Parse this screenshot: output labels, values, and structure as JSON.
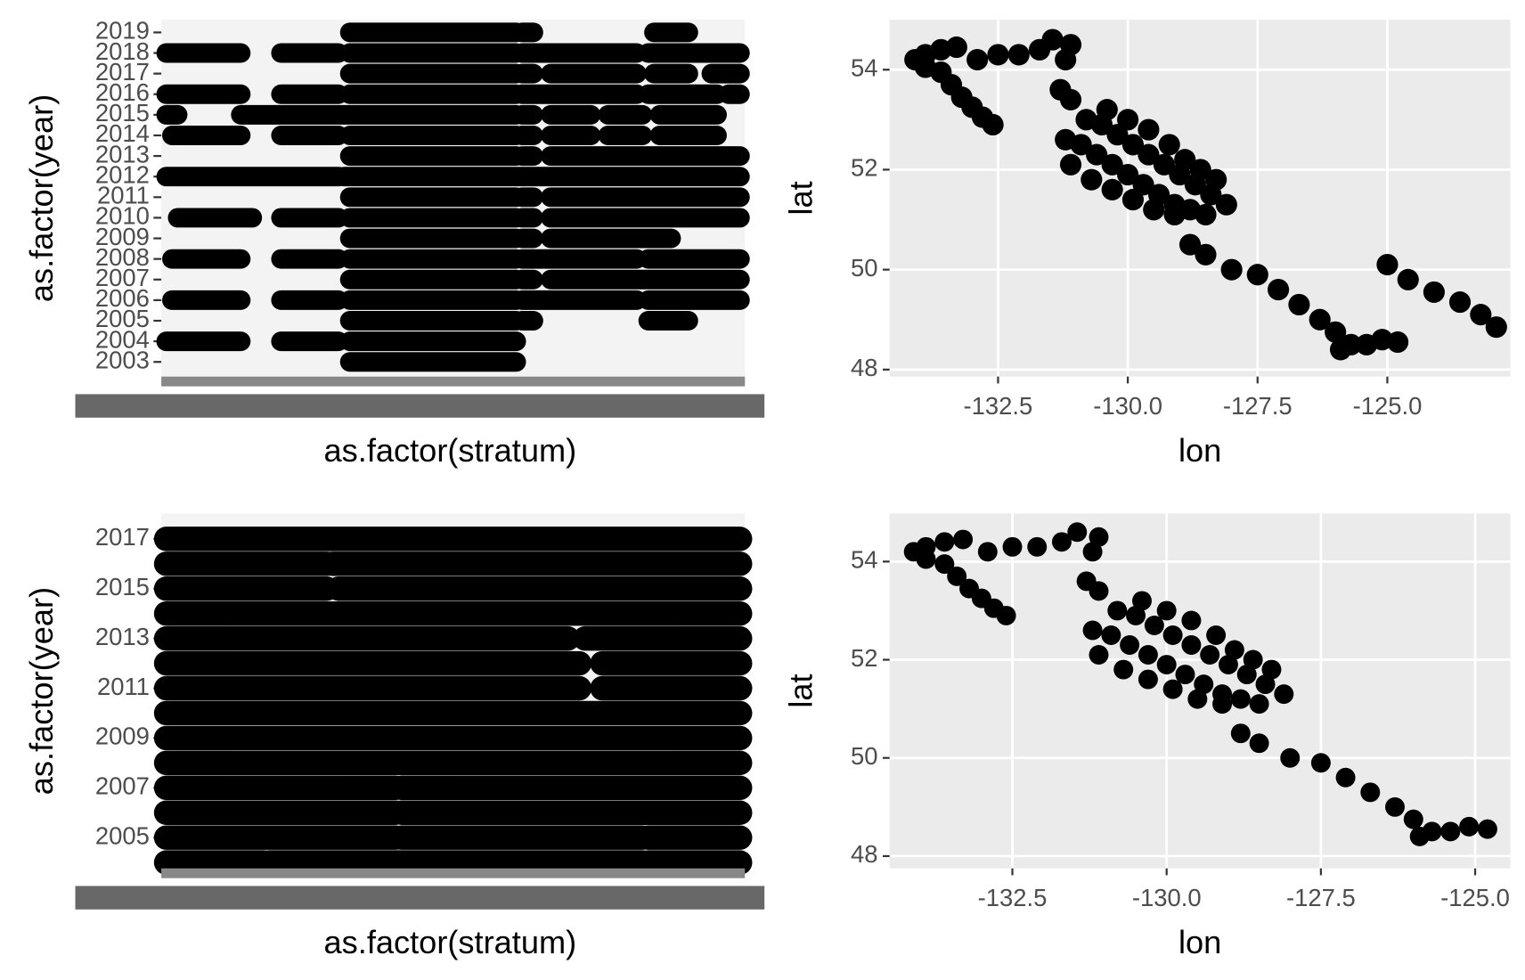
{
  "chart_data": [
    {
      "type": "strip",
      "x_label": "as.factor(stratum)",
      "y_label": "as.factor(year)",
      "xlim": [
        0,
        100
      ],
      "categories": [
        2003,
        2004,
        2005,
        2006,
        2007,
        2008,
        2009,
        2010,
        2011,
        2012,
        2013,
        2014,
        2015,
        2016,
        2017,
        2018,
        2019
      ],
      "segments": [
        [
          [
            32,
            61
          ]
        ],
        [
          [
            0,
            13
          ],
          [
            20,
            30
          ],
          [
            32,
            61
          ]
        ],
        [
          [
            32,
            61
          ],
          [
            62,
            64
          ],
          [
            84,
            91
          ]
        ],
        [
          [
            1,
            13
          ],
          [
            20,
            30
          ],
          [
            32,
            61
          ],
          [
            62,
            82
          ],
          [
            84,
            100
          ]
        ],
        [
          [
            32,
            61
          ],
          [
            62,
            64
          ],
          [
            67,
            100
          ]
        ],
        [
          [
            1,
            13
          ],
          [
            20,
            30
          ],
          [
            32,
            61
          ],
          [
            62,
            82
          ],
          [
            84,
            100
          ]
        ],
        [
          [
            32,
            61
          ],
          [
            62,
            64
          ],
          [
            67,
            88
          ]
        ],
        [
          [
            2,
            15
          ],
          [
            20,
            30
          ],
          [
            32,
            61
          ],
          [
            62,
            64
          ],
          [
            67,
            100
          ]
        ],
        [
          [
            32,
            61
          ],
          [
            62,
            64
          ],
          [
            67,
            100
          ]
        ],
        [
          [
            0,
            30
          ],
          [
            31,
            100
          ]
        ],
        [
          [
            32,
            61
          ],
          [
            62,
            64
          ],
          [
            67,
            100
          ]
        ],
        [
          [
            1,
            13
          ],
          [
            20,
            30
          ],
          [
            32,
            61
          ],
          [
            62,
            64
          ],
          [
            67,
            74
          ],
          [
            77,
            83
          ],
          [
            86,
            96
          ]
        ],
        [
          [
            0,
            2
          ],
          [
            13,
            61
          ],
          [
            62,
            64
          ],
          [
            67,
            74
          ],
          [
            77,
            83
          ],
          [
            86,
            96
          ]
        ],
        [
          [
            0,
            13
          ],
          [
            20,
            30
          ],
          [
            32,
            61
          ],
          [
            62,
            82
          ],
          [
            84,
            96
          ],
          [
            98,
            100
          ]
        ],
        [
          [
            32,
            61
          ],
          [
            62,
            64
          ],
          [
            67,
            82
          ],
          [
            85,
            91
          ],
          [
            95,
            100
          ]
        ],
        [
          [
            0,
            13
          ],
          [
            20,
            30
          ],
          [
            32,
            61
          ],
          [
            62,
            82
          ],
          [
            84,
            100
          ]
        ],
        [
          [
            32,
            61
          ],
          [
            62,
            64
          ],
          [
            85,
            91
          ]
        ]
      ]
    },
    {
      "type": "scatter",
      "x_label": "lon",
      "y_label": "lat",
      "color": "#000000",
      "xlim": [
        -134.59,
        -122.63
      ],
      "ylim": [
        47.86,
        55.0
      ],
      "xticks": [
        -132.5,
        {
          "value": -130,
          "label": "-130.0"
        },
        -127.5,
        {
          "value": -125,
          "label": "-125.0"
        }
      ],
      "yticks": [
        48,
        50,
        52,
        54
      ],
      "x": [
        -134.1,
        -133.9,
        -133.6,
        -133.3,
        -133.9,
        -133.6,
        -133.4,
        -133.2,
        -133.0,
        -132.8,
        -132.6,
        -132.9,
        -132.5,
        -132.1,
        -131.7,
        -131.45,
        -131.1,
        -131.2,
        -131.3,
        -131.1,
        -130.8,
        -130.5,
        -130.2,
        -129.9,
        -129.6,
        -129.3,
        -129.0,
        -128.7,
        -128.4,
        -128.1,
        -130.9,
        -130.6,
        -130.3,
        -130.0,
        -129.7,
        -129.4,
        -129.1,
        -128.8,
        -128.5,
        -130.4,
        -130.0,
        -129.6,
        -129.2,
        -128.9,
        -128.6,
        -128.3,
        -131.1,
        -130.7,
        -130.3,
        -129.9,
        -129.5,
        -129.1,
        -131.2,
        -128.8,
        -128.5,
        -128.0,
        -127.5,
        -127.1,
        -126.7,
        -126.3,
        -126.0,
        -125.7,
        -125.4,
        -125.1,
        -124.8,
        -125.9,
        -125.0,
        -124.6,
        -124.1,
        -123.6,
        -123.2,
        -122.9
      ],
      "y": [
        54.2,
        54.3,
        54.4,
        54.45,
        54.05,
        53.95,
        53.7,
        53.45,
        53.25,
        53.05,
        52.9,
        54.2,
        54.3,
        54.3,
        54.4,
        54.6,
        54.5,
        54.2,
        53.6,
        53.4,
        53.0,
        52.9,
        52.7,
        52.5,
        52.3,
        52.1,
        51.9,
        51.7,
        51.5,
        51.3,
        52.5,
        52.3,
        52.1,
        51.9,
        51.7,
        51.5,
        51.3,
        51.2,
        51.1,
        53.2,
        53.0,
        52.8,
        52.5,
        52.2,
        52.0,
        51.8,
        52.1,
        51.8,
        51.6,
        51.4,
        51.2,
        51.1,
        52.6,
        50.5,
        50.3,
        50.0,
        49.9,
        49.6,
        49.3,
        49.0,
        48.75,
        48.5,
        48.5,
        48.6,
        48.55,
        48.4,
        50.1,
        49.8,
        49.55,
        49.35,
        49.1,
        48.85
      ]
    },
    {
      "type": "strip",
      "x_label": "as.factor(stratum)",
      "y_label": "as.factor(year)",
      "xlim": [
        0,
        100
      ],
      "categories": [
        null,
        2005,
        null,
        2007,
        null,
        2009,
        null,
        2011,
        null,
        2013,
        null,
        2015,
        null,
        2017
      ],
      "segments": [
        [
          [
            0,
            17
          ],
          [
            18,
            83
          ],
          [
            84,
            100
          ]
        ],
        [
          [
            0,
            40
          ],
          [
            41,
            83
          ],
          [
            84,
            100
          ]
        ],
        [
          [
            0,
            40
          ],
          [
            41,
            100
          ]
        ],
        [
          [
            0,
            40
          ],
          [
            41,
            100
          ]
        ],
        [
          [
            0,
            100
          ]
        ],
        [
          [
            0,
            100
          ]
        ],
        [
          [
            0,
            100
          ]
        ],
        [
          [
            0,
            72
          ],
          [
            76,
            100
          ]
        ],
        [
          [
            0,
            72
          ],
          [
            76,
            100
          ]
        ],
        [
          [
            0,
            70
          ],
          [
            73,
            100
          ]
        ],
        [
          [
            0,
            100
          ]
        ],
        [
          [
            0,
            28
          ],
          [
            30,
            100
          ]
        ],
        [
          [
            0,
            28
          ],
          [
            29,
            100
          ]
        ],
        [
          [
            0,
            100
          ]
        ]
      ]
    },
    {
      "type": "scatter",
      "x_label": "lon",
      "y_label": "lat",
      "color": "#000000",
      "xlim": [
        -134.49,
        -124.43
      ],
      "ylim": [
        47.75,
        54.98
      ],
      "xticks": [
        -132.5,
        {
          "value": -130,
          "label": "-130.0"
        },
        -127.5,
        {
          "value": -125,
          "label": "-125.0"
        }
      ],
      "yticks": [
        48,
        50,
        52,
        54
      ],
      "x": [
        -134.1,
        -133.9,
        -133.6,
        -133.3,
        -133.9,
        -133.6,
        -133.4,
        -133.2,
        -133.0,
        -132.8,
        -132.6,
        -132.9,
        -132.5,
        -132.1,
        -131.7,
        -131.45,
        -131.1,
        -131.2,
        -131.3,
        -131.1,
        -130.8,
        -130.5,
        -130.2,
        -129.9,
        -129.6,
        -129.3,
        -129.0,
        -128.7,
        -128.4,
        -128.1,
        -130.9,
        -130.6,
        -130.3,
        -130.0,
        -129.7,
        -129.4,
        -129.1,
        -128.8,
        -128.5,
        -130.4,
        -130.0,
        -129.6,
        -129.2,
        -128.9,
        -128.6,
        -128.3,
        -131.1,
        -130.7,
        -130.3,
        -129.9,
        -129.5,
        -129.1,
        -131.2,
        -128.8,
        -128.5,
        -128.0,
        -127.5,
        -127.1,
        -126.7,
        -126.3,
        -126.0,
        -125.7,
        -125.4,
        -125.1,
        -124.8,
        -125.9
      ],
      "y": [
        54.2,
        54.3,
        54.4,
        54.45,
        54.05,
        53.95,
        53.7,
        53.45,
        53.25,
        53.05,
        52.9,
        54.2,
        54.3,
        54.3,
        54.4,
        54.6,
        54.5,
        54.2,
        53.6,
        53.4,
        53.0,
        52.9,
        52.7,
        52.5,
        52.3,
        52.1,
        51.9,
        51.7,
        51.5,
        51.3,
        52.5,
        52.3,
        52.1,
        51.9,
        51.7,
        51.5,
        51.3,
        51.2,
        51.1,
        53.2,
        53.0,
        52.8,
        52.5,
        52.2,
        52.0,
        51.8,
        52.1,
        51.8,
        51.6,
        51.4,
        51.2,
        51.1,
        52.6,
        50.5,
        50.3,
        50.0,
        49.9,
        49.6,
        49.3,
        49.0,
        48.75,
        48.5,
        48.5,
        48.6,
        48.55,
        48.4
      ]
    }
  ]
}
